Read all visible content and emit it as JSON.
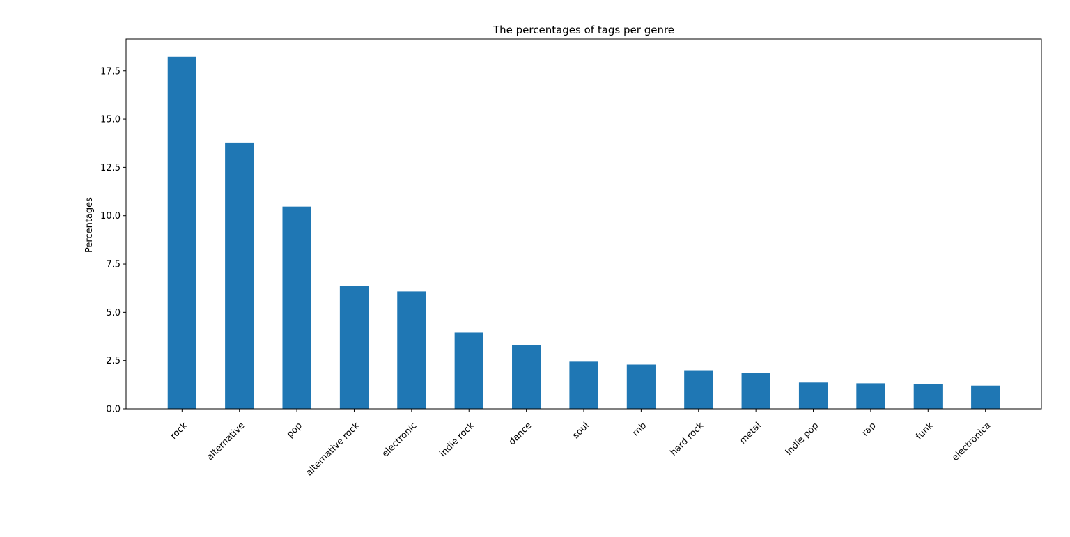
{
  "chart_data": {
    "type": "bar",
    "title": "The percentages of tags per genre",
    "xlabel": "",
    "ylabel": "Percentages",
    "categories": [
      "rock",
      "alternative",
      "pop",
      "alternative rock",
      "electronic",
      "indie rock",
      "dance",
      "soul",
      "rnb",
      "hard rock",
      "metal",
      "indie pop",
      "rap",
      "funk",
      "electronica"
    ],
    "values": [
      18.22,
      13.78,
      10.47,
      6.37,
      6.08,
      3.95,
      3.31,
      2.44,
      2.29,
      2.0,
      1.87,
      1.36,
      1.32,
      1.28,
      1.2
    ],
    "ylim": [
      0,
      19.15
    ],
    "yticks": [
      0.0,
      2.5,
      5.0,
      7.5,
      10.0,
      12.5,
      15.0,
      17.5
    ],
    "ytick_labels": [
      "0.0",
      "2.5",
      "5.0",
      "7.5",
      "10.0",
      "12.5",
      "15.0",
      "17.5"
    ],
    "grid": false,
    "legend": "none",
    "bar_color": "#1f77b4"
  }
}
